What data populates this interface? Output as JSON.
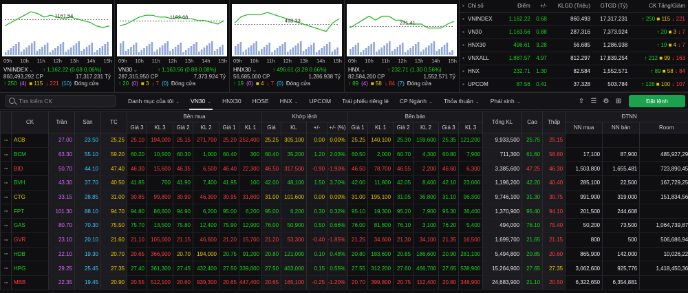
{
  "charts": [
    {
      "id": "vnindex",
      "name": "VNINDEX",
      "marker": "1161.54",
      "change": "↑ 1,162.22 (0.68 0.06%)",
      "volume": "860,493,292 CP",
      "value": "17,317.231 Tỷ",
      "ticks": [
        "09h",
        "10h",
        "11h",
        "12h",
        "13h",
        "14h",
        "15h"
      ],
      "breadth": {
        "up": "↑ 250",
        "ceil": "(4)",
        "ref": "■ 115",
        "down": "↓ 221",
        "floor": "(10)",
        "status": "Đóng cửa"
      },
      "line": [
        1158,
        1160,
        1162,
        1164,
        1166,
        1165,
        1163,
        1164,
        1163,
        1162,
        1163,
        1162,
        1161,
        1160,
        1158,
        1157,
        1158
      ],
      "refline": 1161.54,
      "ylim": [
        1150,
        1168
      ]
    },
    {
      "id": "vn30",
      "name": "VN30",
      "marker": "1162.68",
      "change": "↑ 1,163.56 (0.88 0.08%)",
      "volume": "287,315,950 CP",
      "value": "7,373.924 Tỷ",
      "ticks": [
        "09h",
        "10h",
        "11h",
        "12h",
        "13h",
        "14h",
        "15h"
      ],
      "breadth": {
        "up": "↑ 20",
        "ceil": "(0)",
        "ref": "■ 3",
        "down": "↓ 7",
        "floor": "(0)",
        "status": "Đóng cửa"
      },
      "line": [
        1160,
        1161,
        1163,
        1165,
        1166,
        1166,
        1165,
        1165,
        1164,
        1165,
        1164,
        1164,
        1163,
        1163,
        1162,
        1161,
        1163
      ],
      "refline": 1162.68,
      "ylim": [
        1152,
        1170
      ]
    },
    {
      "id": "hnx30",
      "name": "HNX30",
      "marker": "493.33",
      "change": "↑ 496.61 (3.28 0.66%)",
      "volume": "56,685,000 CP",
      "value": "1,286.938 Tỷ",
      "ticks": [
        "09h",
        "10h",
        "11h",
        "12h",
        "13h",
        "14h",
        "15h"
      ],
      "breadth": {
        "up": "↑ 19",
        "ceil": "(0)",
        "ref": "■ 4",
        "down": "↓ 7",
        "floor": "(0)",
        "status": "Đóng cửa"
      },
      "line": [
        494,
        497,
        498,
        498,
        498,
        499,
        498,
        497,
        496,
        495,
        494,
        493,
        492,
        491,
        490,
        494,
        496
      ],
      "refline": 493.33,
      "ylim": [
        486,
        501
      ]
    },
    {
      "id": "hnx",
      "name": "HNX",
      "marker": "231.41",
      "change": "↑ 232.71 (1.30 0.56%)",
      "volume": "82,584,200 CP",
      "value": "1,552.571 Tỷ",
      "ticks": [
        "09h",
        "10h",
        "11h",
        "12h",
        "13h",
        "14h",
        "15h"
      ],
      "breadth": {
        "up": "↑ 89",
        "ceil": "(4)",
        "ref": "■ 58",
        "down": "↓ 84",
        "floor": "(7)",
        "status": "Đóng cửa"
      },
      "line": [
        231,
        232,
        233,
        234,
        233,
        234,
        234,
        233,
        233,
        232,
        232,
        232,
        231,
        231,
        231,
        232,
        232.7
      ],
      "refline": 231.41,
      "ylim": [
        228,
        236
      ]
    }
  ],
  "index_table": {
    "headers": [
      "Chỉ số",
      "Điểm",
      "+/-",
      "KLGD (Triệu)",
      "GTGD (Tỷ)",
      "CK Tăng/Giảm"
    ],
    "rows": [
      {
        "name": "VNINDEX",
        "point": "1,162.22",
        "chg": "0.68",
        "vol": "860.493",
        "val": "17,317.231",
        "up": "↑ 250",
        "ref": "■ 115",
        "dn": "↓ 221"
      },
      {
        "name": "VN30",
        "point": "1,163.56",
        "chg": "0.88",
        "vol": "287.316",
        "val": "7,373.924",
        "up": "↑ 20",
        "ref": "■ 3",
        "dn": "↓ 7"
      },
      {
        "name": "HNX30",
        "point": "496.61",
        "chg": "3.28",
        "vol": "56.685",
        "val": "1,286.938",
        "up": "↑ 19",
        "ref": "■ 4",
        "dn": "↓ 7"
      },
      {
        "name": "VNXALL",
        "point": "1,887.57",
        "chg": "4.97",
        "vol": "812.297",
        "val": "17,839.254",
        "up": "↑ 212",
        "ref": "■ 99",
        "dn": "↓ 163"
      },
      {
        "name": "HNX",
        "point": "232.71",
        "chg": "1.30",
        "vol": "82.584",
        "val": "1,552.571",
        "up": "↑ 89",
        "ref": "■ 58",
        "dn": "↓ 84"
      },
      {
        "name": "UPCOM",
        "point": "87.56",
        "chg": "0.41",
        "vol": "37.328",
        "val": "503.784",
        "up": "↑ 128",
        "ref": "■ 100",
        "dn": "↓ 107"
      }
    ]
  },
  "toolbar": {
    "search_placeholder": "Tìm kiếm CK",
    "tabs": [
      {
        "label": "Danh mục của tôi",
        "chev": "⌄"
      },
      {
        "label": "VN30",
        "chev": "⌄",
        "active": true
      },
      {
        "label": "HNX30"
      },
      {
        "label": "HOSE"
      },
      {
        "label": "HNX",
        "chev": "⌄"
      },
      {
        "label": "UPCOM"
      },
      {
        "label": "Trái phiếu riêng lẻ"
      },
      {
        "label": "CP Ngành",
        "chev": "⌄"
      },
      {
        "label": "Thỏa thuận",
        "chev": "⌄"
      },
      {
        "label": "Phái sinh",
        "chev": "⌄"
      }
    ],
    "order_button": "Đặt lệnh"
  },
  "board": {
    "group_headers": {
      "ck": "CK",
      "tran": "Trần",
      "san": "Sàn",
      "tc": "TC",
      "ben_mua": "Bên mua",
      "khop_lenh": "Khớp lệnh",
      "ben_ban": "Bên bán",
      "tong_kl": "Tổng KL",
      "cao": "Cao",
      "thap": "Thấp",
      "dtnn": "ĐTNN"
    },
    "sub_headers": [
      "Giá 3",
      "KL 3",
      "Giá 2",
      "KL 2",
      "Giá 1",
      "KL 1",
      "Giá",
      "KL",
      "+/-",
      "+/- (%)",
      "Giá 1",
      "KL 1",
      "Giá 2",
      "KL 2",
      "Giá 3",
      "KL 3",
      "NN mua",
      "NN bán",
      "Room"
    ],
    "rows": [
      {
        "ck": "ACB",
        "c": "ref",
        "tran": "27.00",
        "san": "23.50",
        "tc": "25.25",
        "b3": [
          "25.10",
          "194,000",
          "dn"
        ],
        "b2": [
          "25.15",
          "271,700",
          "dn"
        ],
        "b1": [
          "25.20",
          "252,400",
          "dn"
        ],
        "m": [
          "25.25",
          "305,100",
          "ref"
        ],
        "chg": [
          "0.00",
          "0.00%",
          "ref"
        ],
        "s1": [
          "25.25",
          "140,100",
          "ref"
        ],
        "s2": [
          "25.30",
          "159,600",
          "up"
        ],
        "s3": [
          "25.35",
          "121,200",
          "up"
        ],
        "tkl": "9,933,500",
        "cao": [
          "25.75",
          "up"
        ],
        "thap": [
          "25.15",
          "dn"
        ],
        "nnm": "",
        "nnb": "",
        "room": ""
      },
      {
        "ck": "BCM",
        "c": "up",
        "tran": "63.30",
        "san": "55.10",
        "tc": "59.20",
        "b3": [
          "60.20",
          "10,500",
          "up"
        ],
        "b2": [
          "60.30",
          "1,000",
          "up"
        ],
        "b1": [
          "60.40",
          "300",
          "up"
        ],
        "m": [
          "60.40",
          "35,200",
          "up"
        ],
        "chg": [
          "1.20",
          "2.03%",
          "up"
        ],
        "s1": [
          "60.50",
          "2,000",
          "up"
        ],
        "s2": [
          "60.70",
          "4,300",
          "up"
        ],
        "s3": [
          "60.80",
          "7,900",
          "up"
        ],
        "tkl": "711,300",
        "cao": [
          "61.60",
          "up"
        ],
        "thap": [
          "58.80",
          "dn"
        ],
        "nnm": "17,100",
        "nnb": "87,900",
        "room": "485,927,292"
      },
      {
        "ck": "BID",
        "c": "dn",
        "tran": "50.70",
        "san": "44.10",
        "tc": "47.40",
        "b3": [
          "46.30",
          "15,600",
          "dn"
        ],
        "b2": [
          "46.35",
          "6,500",
          "dn"
        ],
        "b1": [
          "46.40",
          "22,300",
          "dn"
        ],
        "m": [
          "46.50",
          "317,500",
          "dn"
        ],
        "chg": [
          "-0.90",
          "-1.90%",
          "dn"
        ],
        "s1": [
          "46.50",
          "78,700",
          "dn"
        ],
        "s2": [
          "46.55",
          "2,200",
          "dn"
        ],
        "s3": [
          "46.60",
          "6,300",
          "dn"
        ],
        "tkl": "3,385,600",
        "cao": [
          "47.25",
          "dn"
        ],
        "thap": [
          "46.30",
          "dn"
        ],
        "nnm": "1,503,800",
        "nnb": "1,655,481",
        "room": "723,890,456"
      },
      {
        "ck": "BVH",
        "c": "up",
        "tran": "43.30",
        "san": "37.70",
        "tc": "40.50",
        "b3": [
          "41.85",
          "700",
          "up"
        ],
        "b2": [
          "41.90",
          "7,400",
          "up"
        ],
        "b1": [
          "41.95",
          "100",
          "up"
        ],
        "m": [
          "42.00",
          "48,100",
          "up"
        ],
        "chg": [
          "1.50",
          "3.70%",
          "up"
        ],
        "s1": [
          "42.00",
          "11,800",
          "up"
        ],
        "s2": [
          "42.05",
          "8,400",
          "up"
        ],
        "s3": [
          "42.10",
          "23,000",
          "up"
        ],
        "tkl": "1,196,200",
        "cao": [
          "42.20",
          "up"
        ],
        "thap": [
          "40.40",
          "dn"
        ],
        "nnm": "285,100",
        "nnb": "22,500",
        "room": "167,729,259"
      },
      {
        "ck": "CTG",
        "c": "ref",
        "tran": "33.15",
        "san": "28.85",
        "tc": "31.00",
        "b3": [
          "30.85",
          "99,800",
          "dn"
        ],
        "b2": [
          "30.90",
          "46,300",
          "dn"
        ],
        "b1": [
          "30.95",
          "31,800",
          "dn"
        ],
        "m": [
          "31.00",
          "101,600",
          "ref"
        ],
        "chg": [
          "0.00",
          "0.00%",
          "ref"
        ],
        "s1": [
          "31.00",
          "195,100",
          "ref"
        ],
        "s2": [
          "31.05",
          "36,800",
          "up"
        ],
        "s3": [
          "31.10",
          "96,300",
          "up"
        ],
        "tkl": "9,746,100",
        "cao": [
          "31.30",
          "up"
        ],
        "thap": [
          "30.75",
          "dn"
        ],
        "nnm": "991,900",
        "nnb": "319,000",
        "room": "151,834,561"
      },
      {
        "ck": "FPT",
        "c": "up",
        "tran": "101.30",
        "san": "88.10",
        "tc": "94.70",
        "b3": [
          "94.80",
          "86,600",
          "up"
        ],
        "b2": [
          "94.90",
          "6,200",
          "up"
        ],
        "b1": [
          "95.00",
          "6,200",
          "up"
        ],
        "m": [
          "95.00",
          "6,200",
          "up"
        ],
        "chg": [
          "0.30",
          "0.32%",
          "up"
        ],
        "s1": [
          "95.10",
          "19,300",
          "up"
        ],
        "s2": [
          "95.20",
          "7,900",
          "up"
        ],
        "s3": [
          "95.30",
          "36,400",
          "up"
        ],
        "tkl": "1,370,900",
        "cao": [
          "95.40",
          "up"
        ],
        "thap": [
          "94.10",
          "dn"
        ],
        "nnm": "201,500",
        "nnb": "244,608",
        "room": ""
      },
      {
        "ck": "GAS",
        "c": "up",
        "tran": "80.70",
        "san": "70.30",
        "tc": "75.50",
        "b3": [
          "75.70",
          "13,500",
          "up"
        ],
        "b2": [
          "75.80",
          "12,400",
          "up"
        ],
        "b1": [
          "75.90",
          "12,900",
          "up"
        ],
        "m": [
          "76.00",
          "50,900",
          "up"
        ],
        "chg": [
          "0.50",
          "0.66%",
          "up"
        ],
        "s1": [
          "76.00",
          "81,800",
          "up"
        ],
        "s2": [
          "76.10",
          "3,100",
          "up"
        ],
        "s3": [
          "76.20",
          "5,400",
          "up"
        ],
        "tkl": "494,000",
        "cao": [
          "76.10",
          "up"
        ],
        "thap": [
          "75.40",
          "dn"
        ],
        "nnm": "50,200",
        "nnb": "73,500",
        "room": "1,064,739,879"
      },
      {
        "ck": "GVR",
        "c": "dn",
        "tran": "23.10",
        "san": "20.10",
        "tc": "21.60",
        "b3": [
          "21.10",
          "105,000",
          "dn"
        ],
        "b2": [
          "21.15",
          "46,600",
          "dn"
        ],
        "b1": [
          "21.20",
          "15,700",
          "dn"
        ],
        "m": [
          "21.20",
          "53,300",
          "dn"
        ],
        "chg": [
          "-0.40",
          "-1.85%",
          "dn"
        ],
        "s1": [
          "21.25",
          "34,600",
          "dn"
        ],
        "s2": [
          "21.30",
          "34,100",
          "dn"
        ],
        "s3": [
          "21.35",
          "16,500",
          "dn"
        ],
        "tkl": "1,699,700",
        "cao": [
          "21.65",
          "up"
        ],
        "thap": [
          "21.15",
          "dn"
        ],
        "nnm": "800",
        "nnb": "500",
        "room": "506,686,949"
      },
      {
        "ck": "HDB",
        "c": "up",
        "tran": "22.10",
        "s1x": "",
        "san": "19.30",
        "tc": "20.70",
        "b3": [
          "20.65",
          "366,900",
          "dn"
        ],
        "b2": [
          "20.70",
          "194,000",
          "ref"
        ],
        "b1": [
          "20.75",
          "91,200",
          "up"
        ],
        "m": [
          "20.80",
          "121,000",
          "up"
        ],
        "chg": [
          "0.10",
          "0.48%",
          "up"
        ],
        "s1": [
          "20.80",
          "183,600",
          "up"
        ],
        "s2": [
          "20.85",
          "186,600",
          "up"
        ],
        "s3": [
          "20.90",
          "281,100",
          "up"
        ],
        "tkl": "5,494,800",
        "cao": [
          "20.85",
          "up"
        ],
        "thap": [
          "20.60",
          "dn"
        ],
        "nnm": "865,900",
        "nnb": "142,000",
        "room": "10,026,229"
      },
      {
        "ck": "HPG",
        "c": "up",
        "tran": "29.25",
        "san": "25.45",
        "tc": "27.35",
        "b3": [
          "27.40",
          "361,300",
          "up"
        ],
        "b2": [
          "27.45",
          "432,400",
          "up"
        ],
        "b1": [
          "27.50",
          "339,000",
          "up"
        ],
        "m": [
          "27.50",
          "463,000",
          "up"
        ],
        "chg": [
          "0.15",
          "0.55%",
          "up"
        ],
        "s1": [
          "27.55",
          "312,200",
          "up"
        ],
        "s2": [
          "27.60",
          "466,700",
          "up"
        ],
        "s3": [
          "27.65",
          "538,900",
          "up"
        ],
        "tkl": "15,264,900",
        "cao": [
          "27.65",
          "up"
        ],
        "thap": [
          "27.35",
          "ref"
        ],
        "nnm": "3,062,600",
        "nnb": "925,776",
        "room": "1,418,450,367"
      },
      {
        "ck": "MBB",
        "c": "dn",
        "tran": "22.35",
        "san": "19.45",
        "tc": "20.90",
        "b3": [
          "20.55",
          "512,100",
          "dn"
        ],
        "b2": [
          "20.60",
          "939,300",
          "dn"
        ],
        "b1": [
          "20.65",
          "447,400",
          "dn"
        ],
        "m": [
          "20.65",
          "165,100",
          "dn"
        ],
        "chg": [
          "-0.25",
          "-1.20%",
          "dn"
        ],
        "s1": [
          "20.70",
          "399,800",
          "dn"
        ],
        "s2": [
          "20.75",
          "112,400",
          "dn"
        ],
        "s3": [
          "20.80",
          "348,900",
          "dn"
        ],
        "tkl": "24,683,900",
        "cao": [
          "21.10",
          "up"
        ],
        "thap": [
          "20.50",
          "dn"
        ],
        "nnm": "6,322,650",
        "nnb": "6,354,881",
        "room": ""
      }
    ]
  }
}
